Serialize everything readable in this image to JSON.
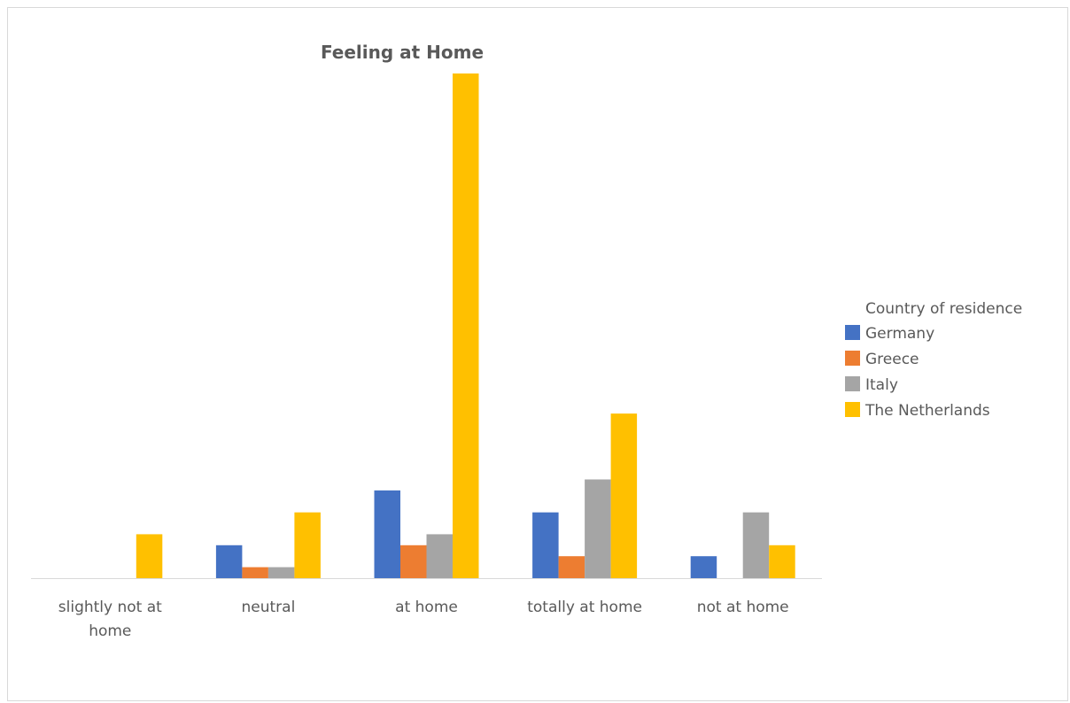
{
  "chart_data": {
    "type": "bar",
    "title": "Feeling at Home",
    "categories": [
      "slightly not at home",
      "neutral",
      "at home",
      "totally at home",
      "not at home"
    ],
    "legend": {
      "title": "Country of residence",
      "placement": "right"
    },
    "series": [
      {
        "name": "Germany",
        "color": "#4472C4",
        "values": [
          0,
          3,
          8,
          6,
          2
        ]
      },
      {
        "name": "Greece",
        "color": "#ED7D31",
        "values": [
          0,
          1,
          3,
          2,
          0
        ]
      },
      {
        "name": "Italy",
        "color": "#A5A5A5",
        "values": [
          0,
          1,
          4,
          9,
          6
        ]
      },
      {
        "name": "The Netherlands",
        "color": "#FFC000",
        "values": [
          4,
          6,
          46,
          15,
          3
        ]
      }
    ],
    "ylim": [
      0,
      46
    ],
    "grid": false,
    "axis_line_color": "#d9d9d9"
  }
}
